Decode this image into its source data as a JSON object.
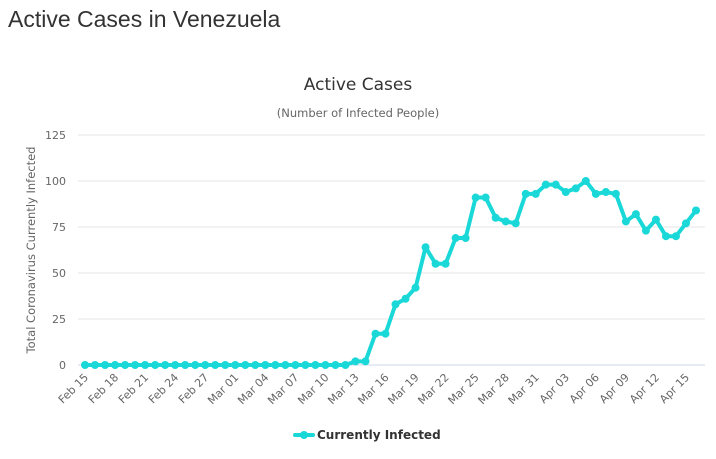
{
  "page": {
    "title": "Active Cases in Venezuela"
  },
  "colors": {
    "series": "#1ad8d8",
    "grid": "#e6e6e6",
    "axis": "#ccd6eb"
  },
  "chart_data": {
    "type": "line",
    "title": "Active Cases",
    "subtitle": "(Number of Infected People)",
    "xlabel": "",
    "ylabel": "Total Coronavirus Currently Infected",
    "ylim": [
      0,
      125
    ],
    "yticks": [
      0,
      25,
      50,
      75,
      100,
      125
    ],
    "grid": true,
    "legend_position": "bottom-center",
    "x": [
      "Feb 15",
      "Feb 16",
      "Feb 17",
      "Feb 18",
      "Feb 19",
      "Feb 20",
      "Feb 21",
      "Feb 22",
      "Feb 23",
      "Feb 24",
      "Feb 25",
      "Feb 26",
      "Feb 27",
      "Feb 28",
      "Feb 29",
      "Mar 01",
      "Mar 02",
      "Mar 03",
      "Mar 04",
      "Mar 05",
      "Mar 06",
      "Mar 07",
      "Mar 08",
      "Mar 09",
      "Mar 10",
      "Mar 11",
      "Mar 12",
      "Mar 13",
      "Mar 14",
      "Mar 15",
      "Mar 16",
      "Mar 17",
      "Mar 18",
      "Mar 19",
      "Mar 20",
      "Mar 21",
      "Mar 22",
      "Mar 23",
      "Mar 24",
      "Mar 25",
      "Mar 26",
      "Mar 27",
      "Mar 28",
      "Mar 29",
      "Mar 30",
      "Mar 31",
      "Apr 01",
      "Apr 02",
      "Apr 03",
      "Apr 04",
      "Apr 05",
      "Apr 06",
      "Apr 07",
      "Apr 08",
      "Apr 09",
      "Apr 10",
      "Apr 11",
      "Apr 12",
      "Apr 13",
      "Apr 14",
      "Apr 15",
      "Apr 16"
    ],
    "xtick_labels": [
      "Feb 15",
      "Feb 18",
      "Feb 21",
      "Feb 24",
      "Feb 27",
      "Mar 01",
      "Mar 04",
      "Mar 07",
      "Mar 10",
      "Mar 13",
      "Mar 16",
      "Mar 19",
      "Mar 22",
      "Mar 25",
      "Mar 28",
      "Mar 31",
      "Apr 03",
      "Apr 06",
      "Apr 09",
      "Apr 12",
      "Apr 15"
    ],
    "series": [
      {
        "name": "Currently Infected",
        "values": [
          0,
          0,
          0,
          0,
          0,
          0,
          0,
          0,
          0,
          0,
          0,
          0,
          0,
          0,
          0,
          0,
          0,
          0,
          0,
          0,
          0,
          0,
          0,
          0,
          0,
          0,
          0,
          2,
          2,
          17,
          17,
          33,
          36,
          42,
          64,
          55,
          55,
          69,
          69,
          91,
          91,
          80,
          78,
          77,
          93,
          93,
          98,
          98,
          94,
          96,
          100,
          93,
          94,
          93,
          78,
          82,
          73,
          79,
          70,
          70,
          77,
          84
        ]
      }
    ]
  }
}
